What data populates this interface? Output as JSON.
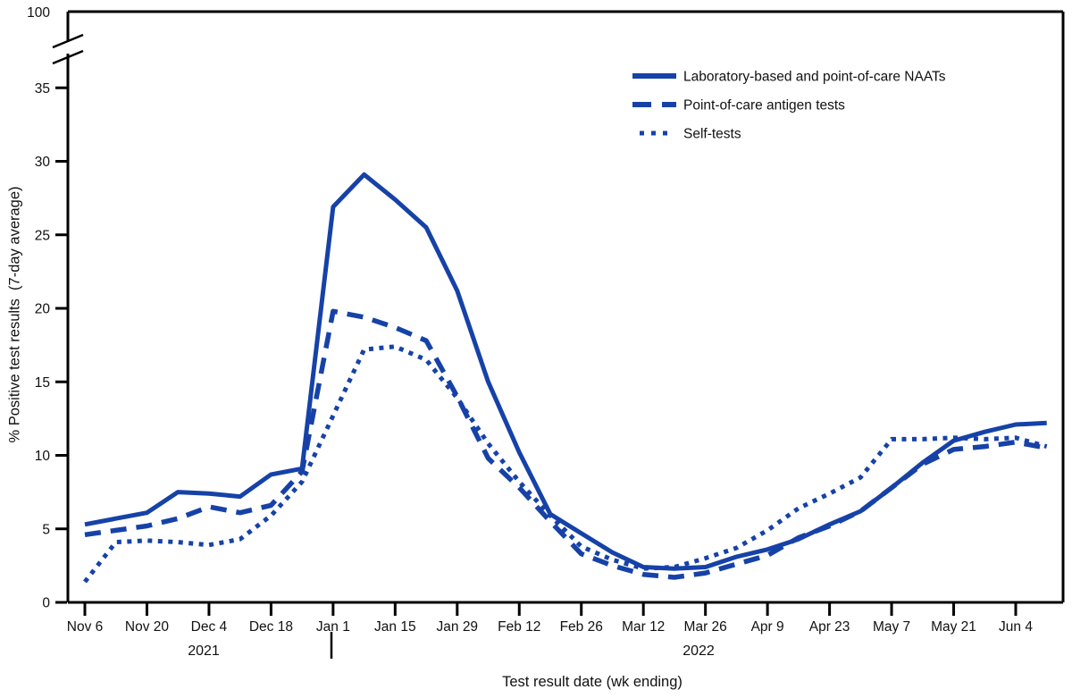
{
  "figure": {
    "y_axis_title": "% Positive test results  (7-day average)",
    "x_axis_title": "Test result date (wk ending)",
    "year_left": "2021",
    "year_right": "2022",
    "colors": {
      "line": "#1642a8",
      "text": "#111111",
      "axis": "#000000"
    }
  },
  "chart_data": {
    "type": "line",
    "title": "",
    "xlabel": "Test result date (wk ending)",
    "ylabel": "% Positive test results (7-day average)",
    "grid": false,
    "legend_position": "top-right-inside",
    "x": [
      "Nov 6",
      "Nov 13",
      "Nov 20",
      "Nov 27",
      "Dec 4",
      "Dec 11",
      "Dec 18",
      "Dec 25",
      "Jan 1",
      "Jan 8",
      "Jan 15",
      "Jan 22",
      "Jan 29",
      "Feb 5",
      "Feb 12",
      "Feb 19",
      "Feb 26",
      "Mar 5",
      "Mar 12",
      "Mar 19",
      "Mar 26",
      "Apr 2",
      "Apr 9",
      "Apr 16",
      "Apr 23",
      "Apr 30",
      "May 7",
      "May 14",
      "May 21",
      "May 28",
      "Jun 4",
      "Jun 11"
    ],
    "x_tick_labels": [
      "Nov 6",
      "Nov 20",
      "Dec 4",
      "Dec 18",
      "Jan 1",
      "Jan 15",
      "Jan 29",
      "Feb 12",
      "Feb 26",
      "Mar 12",
      "Mar 26",
      "Apr 9",
      "Apr 23",
      "May 7",
      "May 21",
      "Jun 4"
    ],
    "y_ticks": [
      0,
      5,
      10,
      15,
      20,
      25,
      30,
      35
    ],
    "y_axis_break": {
      "shown_max": 35,
      "top_label": "100"
    },
    "ylim": [
      0,
      37.5
    ],
    "series": [
      {
        "name": "Laboratory-based and point-of-care NAATs",
        "style": "solid",
        "values": [
          5.3,
          5.7,
          6.1,
          7.5,
          7.4,
          7.2,
          8.7,
          9.1,
          26.9,
          29.1,
          27.4,
          25.5,
          21.2,
          15.0,
          10.2,
          6.0,
          4.7,
          3.4,
          2.4,
          2.3,
          2.4,
          3.1,
          3.6,
          4.3,
          5.3,
          6.2,
          7.8,
          9.5,
          11.0,
          11.6,
          12.1,
          12.2
        ]
      },
      {
        "name": "Point-of-care antigen tests",
        "style": "dashed",
        "values": [
          4.6,
          4.9,
          5.2,
          5.7,
          6.5,
          6.1,
          6.6,
          8.9,
          19.8,
          19.4,
          18.7,
          17.8,
          14.0,
          9.8,
          7.8,
          5.5,
          3.3,
          2.5,
          1.9,
          1.7,
          2.0,
          2.6,
          3.2,
          4.4,
          5.2,
          6.2,
          7.8,
          9.4,
          10.4,
          10.6,
          10.9,
          10.5
        ]
      },
      {
        "name": "Self-tests",
        "style": "dotted",
        "values": [
          1.4,
          4.1,
          4.2,
          4.1,
          3.9,
          4.3,
          5.9,
          8.2,
          12.7,
          17.2,
          17.4,
          16.5,
          13.9,
          10.8,
          8.2,
          5.9,
          3.8,
          2.9,
          2.3,
          2.4,
          3.0,
          3.7,
          4.9,
          6.4,
          7.4,
          8.5,
          11.1,
          11.1,
          11.2,
          11.1,
          11.2,
          10.6
        ]
      }
    ]
  }
}
